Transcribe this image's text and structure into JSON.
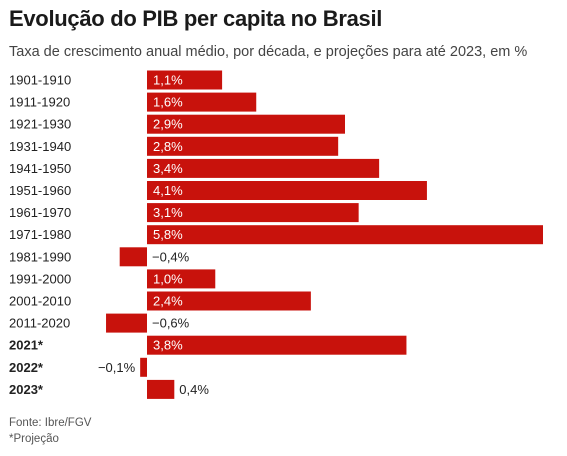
{
  "chart_data": {
    "type": "bar",
    "orientation": "horizontal",
    "title": "Evolução do PIB per capita no Brasil",
    "subtitle": "Taxa de crescimento anual médio, por década, e projeções para até 2023, em %",
    "categories": [
      "1901-1910",
      "1911-1920",
      "1921-1930",
      "1931-1940",
      "1941-1950",
      "1951-1960",
      "1961-1970",
      "1971-1980",
      "1981-1990",
      "1991-2000",
      "2001-2010",
      "2011-2020",
      "2021*",
      "2022*",
      "2023*"
    ],
    "values": [
      1.1,
      1.6,
      2.9,
      2.8,
      3.4,
      4.1,
      3.1,
      5.8,
      -0.4,
      1.0,
      2.4,
      -0.6,
      3.8,
      -0.1,
      0.4
    ],
    "value_labels": [
      "1,1%",
      "1,6%",
      "2,9%",
      "2,8%",
      "3,4%",
      "4,1%",
      "3,1%",
      "5,8%",
      "−0,4%",
      "1,0%",
      "2,4%",
      "−0,6%",
      "3,8%",
      "−0,1%",
      "0,4%"
    ],
    "projection_flags": [
      false,
      false,
      false,
      false,
      false,
      false,
      false,
      false,
      false,
      false,
      false,
      false,
      true,
      true,
      true
    ],
    "bar_color": "#c8120c",
    "grid": false,
    "source": "Fonte: Ibre/FGV",
    "note": "*Projeção"
  }
}
